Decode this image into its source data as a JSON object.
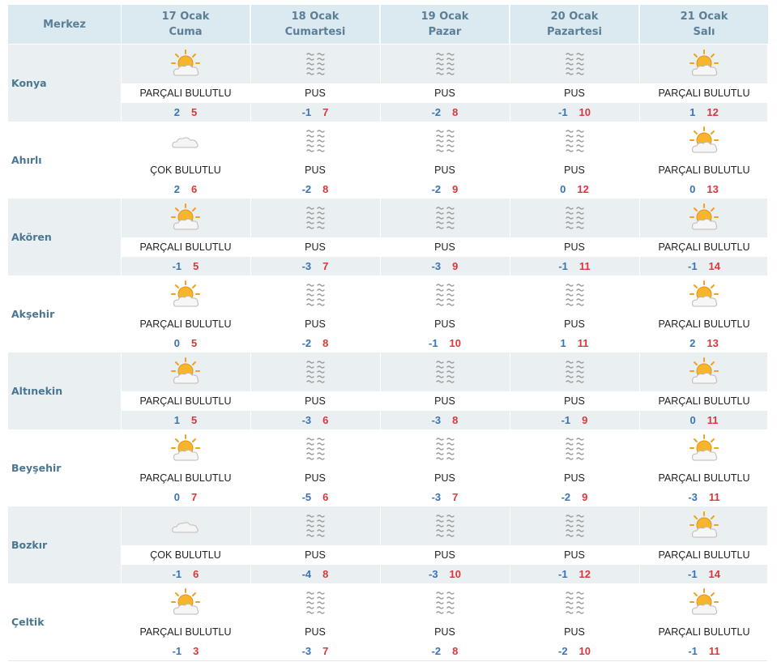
{
  "header": {
    "corner_label": "Merkez",
    "days": [
      {
        "date": "17 Ocak",
        "weekday": "Cuma"
      },
      {
        "date": "18 Ocak",
        "weekday": "Cumartesi"
      },
      {
        "date": "19 Ocak",
        "weekday": "Pazar"
      },
      {
        "date": "20 Ocak",
        "weekday": "Pazartesi"
      },
      {
        "date": "21 Ocak",
        "weekday": "Salı"
      }
    ]
  },
  "colors": {
    "header_bg": "#dbe9f1",
    "row_band_bg": "#eaeff2",
    "temp_min": "#3b74b4",
    "temp_max": "#d8383c",
    "city_text": "#4b7692"
  },
  "cities": [
    {
      "name": "Konya",
      "forecast": [
        {
          "icon": "partly-cloudy-icon",
          "desc": "PARÇALI BULUTLU",
          "min": "2",
          "max": "5"
        },
        {
          "icon": "fog-icon",
          "desc": "PUS",
          "min": "-1",
          "max": "7"
        },
        {
          "icon": "fog-icon",
          "desc": "PUS",
          "min": "-2",
          "max": "8"
        },
        {
          "icon": "fog-icon",
          "desc": "PUS",
          "min": "-1",
          "max": "10"
        },
        {
          "icon": "partly-cloudy-icon",
          "desc": "PARÇALI BULUTLU",
          "min": "1",
          "max": "12"
        }
      ]
    },
    {
      "name": "Ahırlı",
      "forecast": [
        {
          "icon": "cloudy-icon",
          "desc": "ÇOK BULUTLU",
          "min": "2",
          "max": "6"
        },
        {
          "icon": "fog-icon",
          "desc": "PUS",
          "min": "-2",
          "max": "8"
        },
        {
          "icon": "fog-icon",
          "desc": "PUS",
          "min": "-2",
          "max": "9"
        },
        {
          "icon": "fog-icon",
          "desc": "PUS",
          "min": "0",
          "max": "12"
        },
        {
          "icon": "partly-cloudy-icon",
          "desc": "PARÇALI BULUTLU",
          "min": "0",
          "max": "13"
        }
      ]
    },
    {
      "name": "Akören",
      "forecast": [
        {
          "icon": "partly-cloudy-icon",
          "desc": "PARÇALI BULUTLU",
          "min": "-1",
          "max": "5"
        },
        {
          "icon": "fog-icon",
          "desc": "PUS",
          "min": "-3",
          "max": "7"
        },
        {
          "icon": "fog-icon",
          "desc": "PUS",
          "min": "-3",
          "max": "9"
        },
        {
          "icon": "fog-icon",
          "desc": "PUS",
          "min": "-1",
          "max": "11"
        },
        {
          "icon": "partly-cloudy-icon",
          "desc": "PARÇALI BULUTLU",
          "min": "-1",
          "max": "14"
        }
      ]
    },
    {
      "name": "Akşehir",
      "forecast": [
        {
          "icon": "partly-cloudy-icon",
          "desc": "PARÇALI BULUTLU",
          "min": "0",
          "max": "5"
        },
        {
          "icon": "fog-icon",
          "desc": "PUS",
          "min": "-2",
          "max": "8"
        },
        {
          "icon": "fog-icon",
          "desc": "PUS",
          "min": "-1",
          "max": "10"
        },
        {
          "icon": "fog-icon",
          "desc": "PUS",
          "min": "1",
          "max": "11"
        },
        {
          "icon": "partly-cloudy-icon",
          "desc": "PARÇALI BULUTLU",
          "min": "2",
          "max": "13"
        }
      ]
    },
    {
      "name": "Altınekin",
      "forecast": [
        {
          "icon": "partly-cloudy-icon",
          "desc": "PARÇALI BULUTLU",
          "min": "1",
          "max": "5"
        },
        {
          "icon": "fog-icon",
          "desc": "PUS",
          "min": "-3",
          "max": "6"
        },
        {
          "icon": "fog-icon",
          "desc": "PUS",
          "min": "-3",
          "max": "8"
        },
        {
          "icon": "fog-icon",
          "desc": "PUS",
          "min": "-1",
          "max": "9"
        },
        {
          "icon": "partly-cloudy-icon",
          "desc": "PARÇALI BULUTLU",
          "min": "0",
          "max": "11"
        }
      ]
    },
    {
      "name": "Beyşehir",
      "forecast": [
        {
          "icon": "partly-cloudy-icon",
          "desc": "PARÇALI BULUTLU",
          "min": "0",
          "max": "7"
        },
        {
          "icon": "fog-icon",
          "desc": "PUS",
          "min": "-5",
          "max": "6"
        },
        {
          "icon": "fog-icon",
          "desc": "PUS",
          "min": "-3",
          "max": "7"
        },
        {
          "icon": "fog-icon",
          "desc": "PUS",
          "min": "-2",
          "max": "9"
        },
        {
          "icon": "partly-cloudy-icon",
          "desc": "PARÇALI BULUTLU",
          "min": "-3",
          "max": "11"
        }
      ]
    },
    {
      "name": "Bozkır",
      "forecast": [
        {
          "icon": "cloudy-icon",
          "desc": "ÇOK BULUTLU",
          "min": "-1",
          "max": "6"
        },
        {
          "icon": "fog-icon",
          "desc": "PUS",
          "min": "-4",
          "max": "8"
        },
        {
          "icon": "fog-icon",
          "desc": "PUS",
          "min": "-3",
          "max": "10"
        },
        {
          "icon": "fog-icon",
          "desc": "PUS",
          "min": "-1",
          "max": "12"
        },
        {
          "icon": "partly-cloudy-icon",
          "desc": "PARÇALI BULUTLU",
          "min": "-1",
          "max": "14"
        }
      ]
    },
    {
      "name": "Çeltik",
      "forecast": [
        {
          "icon": "partly-cloudy-icon",
          "desc": "PARÇALI BULUTLU",
          "min": "-1",
          "max": "3"
        },
        {
          "icon": "fog-icon",
          "desc": "PUS",
          "min": "-3",
          "max": "7"
        },
        {
          "icon": "fog-icon",
          "desc": "PUS",
          "min": "-2",
          "max": "8"
        },
        {
          "icon": "fog-icon",
          "desc": "PUS",
          "min": "-2",
          "max": "10"
        },
        {
          "icon": "partly-cloudy-icon",
          "desc": "PARÇALI BULUTLU",
          "min": "-1",
          "max": "11"
        }
      ]
    }
  ]
}
